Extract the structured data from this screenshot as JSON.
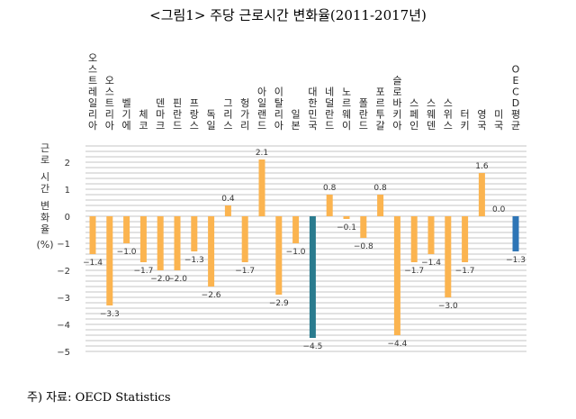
{
  "title": "<그림1> 주당 근로시간 변화율(2011-2017년)",
  "footer": "주) 자료: OECD Statistics",
  "chart_data": {
    "type": "bar",
    "title": "<그림1> 주당 근로시간 변화율(2011-2017년)",
    "ylabel": "근로 시간 변화율 (%)",
    "xlabel": "",
    "ylim": [
      -5,
      2.6
    ],
    "yticks": [
      2,
      1,
      0,
      -1,
      -2,
      -3,
      -4,
      -5
    ],
    "grid": true,
    "categories": [
      "오스트레일리아",
      "오스트리아",
      "벨기에",
      "체코",
      "덴마크",
      "핀란드",
      "프랑스",
      "독일",
      "그리스",
      "헝가리",
      "아일랜드",
      "이탈리아",
      "일본",
      "대한민국",
      "네덜란드",
      "노르웨이",
      "폴란드",
      "포르투갈",
      "슬로바키아",
      "스페인",
      "스웨덴",
      "스위스",
      "터키",
      "영국",
      "미국",
      "OECD평균"
    ],
    "values": [
      -1.4,
      -3.3,
      -1.0,
      -1.7,
      -2.0,
      -2.0,
      -1.3,
      -2.6,
      0.4,
      -1.7,
      2.1,
      -2.9,
      -1.0,
      -4.5,
      0.8,
      -0.1,
      -0.8,
      0.8,
      -4.4,
      -1.7,
      -1.4,
      -3.0,
      -1.7,
      1.6,
      0.0,
      -1.3
    ],
    "labels": [
      "-1.4",
      "-3.3",
      "-1.0",
      "-1.7",
      "-2.0",
      "-2.0",
      "-1.3",
      "-2.6",
      "0.4",
      "-1.7",
      "2.1",
      "-2.9",
      "-1.0",
      "-4.5",
      "0.8",
      "-0.1",
      "-0.8",
      "0.8",
      "-4.4",
      "-1.7",
      "-1.4",
      "-3.0",
      "-1.7",
      "1.6",
      "0.0",
      "-1.3"
    ],
    "colors": {
      "default": "#FBB450",
      "대한민국": "#2A7B8E",
      "OECD평균": "#2E75B6",
      "grid": "#D0D0D0"
    }
  }
}
